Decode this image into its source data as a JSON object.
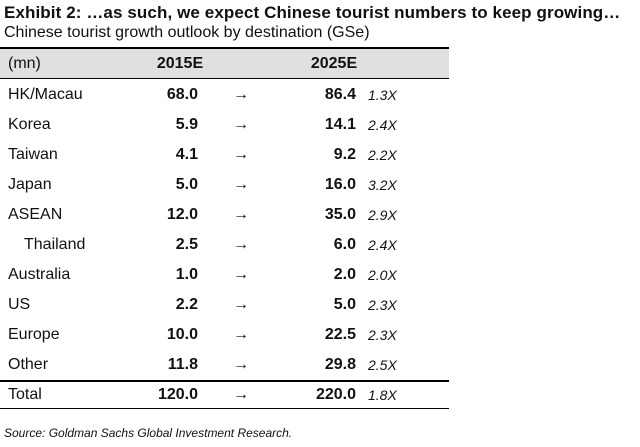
{
  "exhibit": {
    "title": "Exhibit 2: …as such, we expect Chinese tourist numbers to keep growing…",
    "subtitle": "Chinese tourist growth outlook by destination (GSe)",
    "source": "Source: Goldman Sachs Global Investment Research."
  },
  "table": {
    "columns": {
      "unit": "(mn)",
      "year_1": "2015E",
      "year_2": "2025E"
    },
    "arrow_symbol": "→",
    "rows": [
      {
        "destination": "HK/Macau",
        "v2015": "68.0",
        "v2025": "86.4",
        "multiple": "1.3X"
      },
      {
        "destination": "Korea",
        "v2015": "5.9",
        "v2025": "14.1",
        "multiple": "2.4X"
      },
      {
        "destination": "Taiwan",
        "v2015": "4.1",
        "v2025": "9.2",
        "multiple": "2.2X"
      },
      {
        "destination": "Japan",
        "v2015": "5.0",
        "v2025": "16.0",
        "multiple": "3.2X"
      },
      {
        "destination": "ASEAN",
        "v2015": "12.0",
        "v2025": "35.0",
        "multiple": "2.9X"
      },
      {
        "destination": "Thailand",
        "v2015": "2.5",
        "v2025": "6.0",
        "multiple": "2.4X",
        "indent": true
      },
      {
        "destination": "Australia",
        "v2015": "1.0",
        "v2025": "2.0",
        "multiple": "2.0X"
      },
      {
        "destination": "US",
        "v2015": "2.2",
        "v2025": "5.0",
        "multiple": "2.3X"
      },
      {
        "destination": "Europe",
        "v2015": "10.0",
        "v2025": "22.5",
        "multiple": "2.3X"
      },
      {
        "destination": "Other",
        "v2015": "11.8",
        "v2025": "29.8",
        "multiple": "2.5X"
      }
    ],
    "total": {
      "destination": "Total",
      "v2015": "120.0",
      "v2025": "220.0",
      "multiple": "1.8X"
    }
  }
}
